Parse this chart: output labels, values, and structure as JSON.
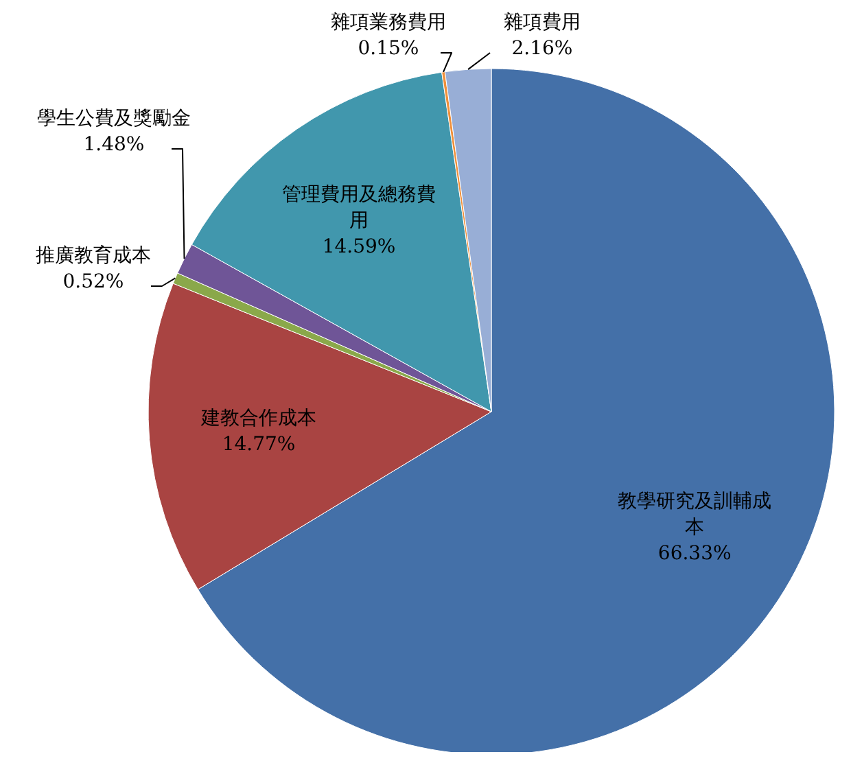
{
  "chart_data": {
    "type": "pie",
    "categories": [
      "教學研究及訓輔成本",
      "建教合作成本",
      "推廣教育成本",
      "學生公費及獎勵金",
      "管理費用及總務費用",
      "雜項業務費用",
      "雜項費用"
    ],
    "values": [
      66.33,
      14.77,
      0.52,
      1.48,
      14.59,
      0.15,
      2.16
    ],
    "value_labels": [
      "66.33%",
      "14.77%",
      "0.52%",
      "1.48%",
      "14.59%",
      "0.15%",
      "2.16%"
    ],
    "colors": [
      "#4470a8",
      "#a94442",
      "#8aa84a",
      "#6f5597",
      "#4197ad",
      "#f0903a",
      "#98aed6"
    ],
    "legend": false
  }
}
